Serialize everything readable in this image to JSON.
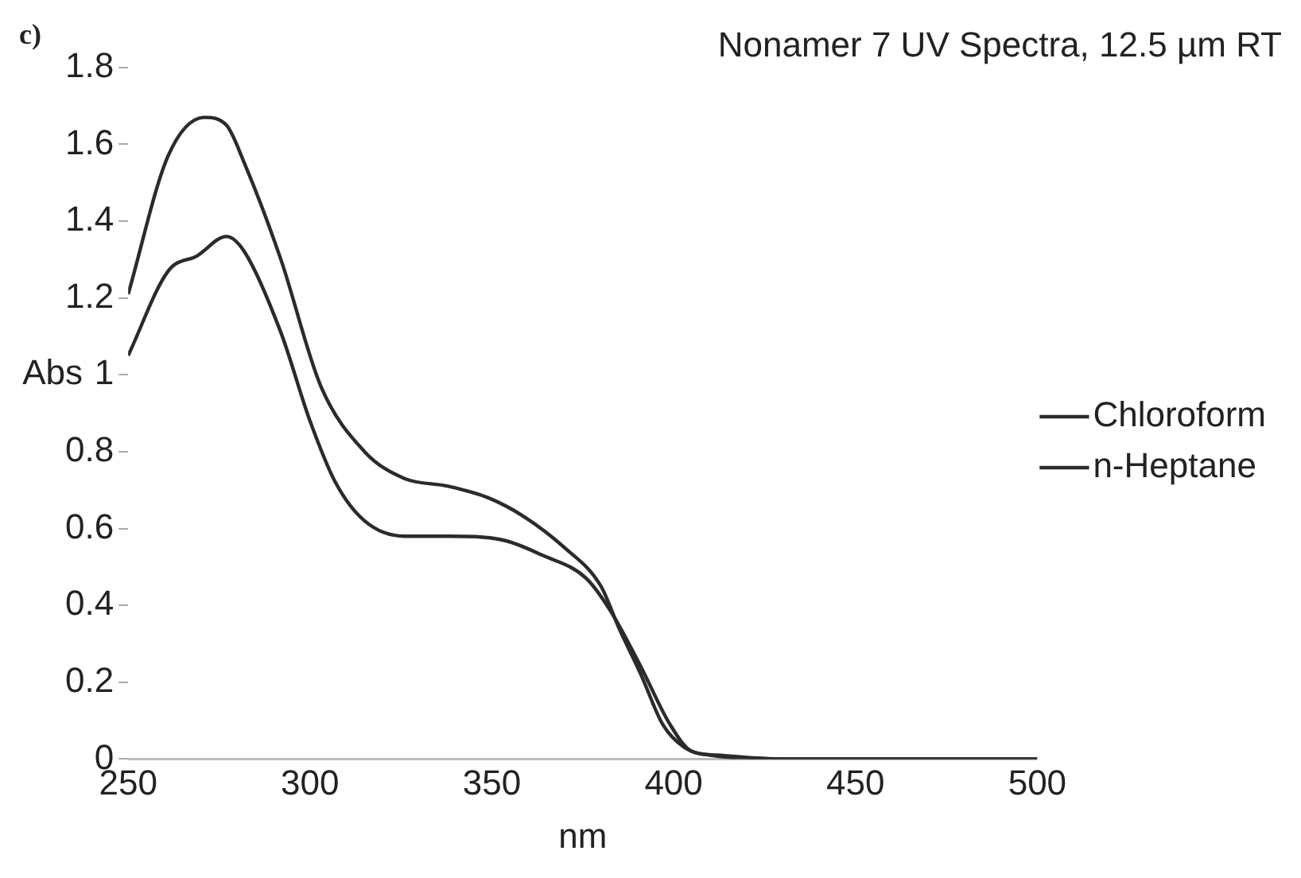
{
  "chart_data": {
    "type": "line",
    "title": "Nonamer 7 UV Spectra, 12.5 µm RT",
    "xlabel": "nm",
    "ylabel": "Abs",
    "annotations": [
      "c)"
    ],
    "xlim": [
      250,
      500
    ],
    "xticks": [
      250,
      300,
      350,
      400,
      450,
      500
    ],
    "ylim": [
      0,
      1.8
    ],
    "yticks": [
      0,
      0.2,
      0.4,
      0.6,
      0.8,
      1,
      1.2,
      1.4,
      1.6,
      1.8
    ],
    "grid": false,
    "legend": "right",
    "marker": "none",
    "line_style": "solid",
    "series": [
      {
        "name": "Chloroform",
        "color": "#2b2b2b",
        "x": [
          250,
          261,
          271,
          277,
          282,
          292,
          303,
          315,
          326,
          338,
          349,
          359,
          370,
          380,
          385,
          391,
          397,
          403,
          410,
          430,
          460,
          500
        ],
        "values": [
          1.21,
          1.57,
          1.67,
          1.65,
          1.55,
          1.3,
          0.97,
          0.8,
          0.73,
          0.71,
          0.68,
          0.63,
          0.55,
          0.45,
          0.34,
          0.22,
          0.09,
          0.03,
          0.01,
          0,
          0,
          0
        ]
      },
      {
        "name": "n-Heptane",
        "color": "#2b2b2b",
        "x": [
          250,
          261,
          269,
          277,
          282,
          292,
          300,
          307,
          315,
          326,
          338,
          353,
          364,
          376,
          383,
          391,
          399,
          405,
          412,
          430,
          460,
          500
        ],
        "values": [
          1.05,
          1.27,
          1.31,
          1.36,
          1.32,
          1.11,
          0.88,
          0.72,
          0.62,
          0.58,
          0.58,
          0.57,
          0.53,
          0.47,
          0.38,
          0.24,
          0.09,
          0.02,
          0.01,
          0,
          0,
          0
        ]
      }
    ]
  }
}
